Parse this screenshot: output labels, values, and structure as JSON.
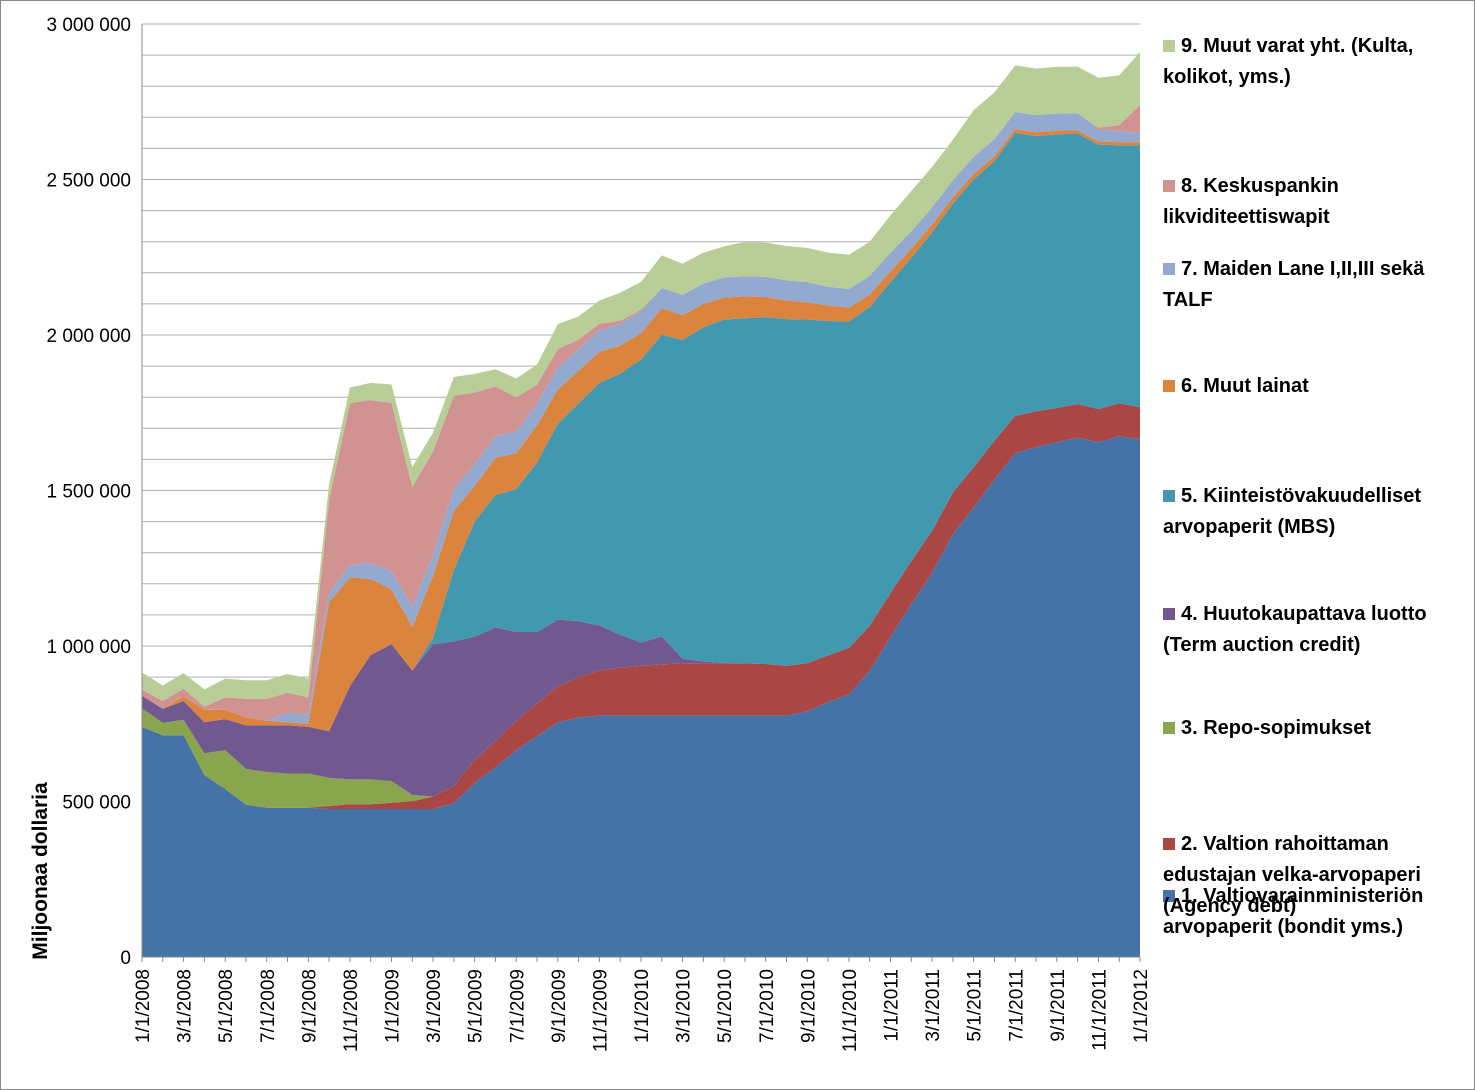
{
  "chart_data": {
    "type": "stacked_area",
    "y_axis_label": "Miljoonaa dollaria",
    "categories": [
      "1/1/2008",
      null,
      "3/1/2008",
      null,
      "5/1/2008",
      null,
      "7/1/2008",
      null,
      "9/1/2008",
      null,
      "11/1/2008",
      null,
      "1/1/2009",
      null,
      "3/1/2009",
      null,
      "5/1/2009",
      null,
      "7/1/2009",
      null,
      "9/1/2009",
      null,
      "11/1/2009",
      null,
      "1/1/2010",
      null,
      "3/1/2010",
      null,
      "5/1/2010",
      null,
      "7/1/2010",
      null,
      "9/1/2010",
      null,
      "11/1/2010",
      null,
      "1/1/2011",
      null,
      "3/1/2011",
      null,
      "5/1/2011",
      null,
      "7/1/2011",
      null,
      "9/1/2011",
      null,
      "11/1/2011",
      null,
      "1/1/2012"
    ],
    "ylim": [
      0,
      3000000
    ],
    "yticks": [
      {
        "value": 0,
        "label": "0"
      },
      {
        "value": 500000,
        "label": "500 000"
      },
      {
        "value": 1000000,
        "label": "1 000 000"
      },
      {
        "value": 1500000,
        "label": "1 500 000"
      },
      {
        "value": 2000000,
        "label": "2 000 000"
      },
      {
        "value": 2500000,
        "label": "2 500 000"
      },
      {
        "value": 3000000,
        "label": "3 000 000"
      }
    ],
    "minor_grid": [
      100000,
      200000,
      300000,
      400000,
      600000,
      700000,
      800000,
      900000,
      1100000,
      1200000,
      1300000,
      1400000,
      1600000,
      1700000,
      1800000,
      1900000,
      2100000,
      2200000,
      2300000,
      2400000,
      2600000,
      2700000,
      2800000,
      2900000
    ],
    "grid": true,
    "legend": "right",
    "series": [
      {
        "name": "1. Valtiovarainministeriön arvopaperit (bondit yms.)",
        "color": "#4572a7",
        "values": [
          740000,
          713000,
          713000,
          585000,
          540000,
          490000,
          480000,
          480000,
          480000,
          476000,
          476000,
          476000,
          476000,
          476000,
          476000,
          495000,
          560000,
          610000,
          665000,
          710000,
          755000,
          770000,
          776000,
          776000,
          776000,
          776000,
          776000,
          776000,
          776000,
          776000,
          776000,
          776000,
          790000,
          820000,
          845000,
          920000,
          1030000,
          1135000,
          1235000,
          1360000,
          1445000,
          1535000,
          1620000,
          1640000,
          1655000,
          1670000,
          1655000,
          1675000,
          1665000
        ]
      },
      {
        "name": "2. Valtion rahoittaman edustajan velka-arvopaperi (Agency debt)",
        "color": "#aa4643",
        "values": [
          0,
          0,
          0,
          0,
          0,
          0,
          0,
          0,
          0,
          10000,
          15000,
          15000,
          20000,
          25000,
          40000,
          55000,
          75000,
          85000,
          95000,
          105000,
          115000,
          130000,
          145000,
          155000,
          160000,
          165000,
          168000,
          169000,
          169000,
          168000,
          166000,
          160000,
          155000,
          150000,
          148000,
          145000,
          140000,
          138000,
          135000,
          133000,
          130000,
          125000,
          120000,
          115000,
          110000,
          108000,
          107000,
          105000,
          103000
        ]
      },
      {
        "name": "3. Repo-sopimukset",
        "color": "#89a54e",
        "values": [
          60000,
          40000,
          50000,
          70000,
          125000,
          115000,
          115000,
          110000,
          110000,
          90000,
          80000,
          80000,
          70000,
          20000,
          0,
          0,
          0,
          0,
          0,
          0,
          0,
          0,
          0,
          0,
          0,
          0,
          0,
          0,
          0,
          0,
          0,
          0,
          0,
          0,
          0,
          0,
          0,
          0,
          0,
          0,
          0,
          0,
          0,
          0,
          0,
          0,
          0,
          0,
          0
        ]
      },
      {
        "name": "4. Huutokaupattava luotto (Term auction credit)",
        "color": "#71588f",
        "values": [
          40000,
          45000,
          60000,
          100000,
          100000,
          140000,
          150000,
          155000,
          150000,
          150000,
          300000,
          400000,
          440000,
          400000,
          490000,
          465000,
          395000,
          365000,
          285000,
          230000,
          215000,
          180000,
          145000,
          105000,
          75000,
          90000,
          15000,
          5000,
          0,
          0,
          0,
          0,
          0,
          0,
          0,
          0,
          0,
          0,
          0,
          0,
          0,
          0,
          0,
          0,
          0,
          0,
          0,
          0,
          0
        ]
      },
      {
        "name": "5. Kiinteistövakuudelliset arvopaperit (MBS)",
        "color": "#4198af",
        "values": [
          0,
          0,
          0,
          0,
          0,
          0,
          0,
          0,
          0,
          0,
          0,
          0,
          0,
          0,
          20000,
          230000,
          370000,
          425000,
          460000,
          545000,
          630000,
          700000,
          780000,
          840000,
          910000,
          970000,
          1025000,
          1075000,
          1105000,
          1110000,
          1115000,
          1115000,
          1105000,
          1075000,
          1050000,
          1025000,
          1000000,
          975000,
          960000,
          930000,
          925000,
          900000,
          910000,
          885000,
          880000,
          870000,
          850000,
          830000,
          842000
        ]
      },
      {
        "name": "6. Muut lainat",
        "color": "#db843d",
        "values": [
          0,
          0,
          15000,
          40000,
          30000,
          25000,
          15000,
          10000,
          10000,
          415000,
          350000,
          245000,
          175000,
          140000,
          200000,
          190000,
          115000,
          120000,
          115000,
          120000,
          110000,
          105000,
          100000,
          90000,
          85000,
          85000,
          80000,
          75000,
          70000,
          70000,
          65000,
          60000,
          55000,
          50000,
          45000,
          40000,
          35000,
          30000,
          25000,
          20000,
          18000,
          15000,
          12000,
          12000,
          12000,
          10000,
          10000,
          10000,
          10000
        ]
      },
      {
        "name": "7. Maiden Lane I,II,III sekä TALF",
        "color": "#93a9cf",
        "values": [
          0,
          0,
          0,
          0,
          0,
          0,
          0,
          30000,
          30000,
          30000,
          40000,
          50000,
          60000,
          65000,
          70000,
          70000,
          70000,
          70000,
          70000,
          70000,
          70000,
          70000,
          70000,
          70000,
          70000,
          65000,
          65000,
          65000,
          65000,
          65000,
          65000,
          65000,
          65000,
          60000,
          60000,
          60000,
          60000,
          55000,
          55000,
          55000,
          55000,
          55000,
          55000,
          55000,
          55000,
          55000,
          40000,
          35000,
          30000
        ]
      },
      {
        "name": "8. Keskuspankin likviditeettiswapit",
        "color": "#d19392",
        "values": [
          20000,
          25000,
          25000,
          10000,
          40000,
          60000,
          70000,
          65000,
          55000,
          300000,
          520000,
          525000,
          540000,
          385000,
          330000,
          300000,
          230000,
          160000,
          110000,
          60000,
          60000,
          30000,
          20000,
          10000,
          5000,
          0,
          0,
          0,
          0,
          0,
          0,
          0,
          0,
          0,
          0,
          0,
          0,
          0,
          0,
          0,
          0,
          0,
          0,
          0,
          0,
          0,
          5000,
          20000,
          90000
        ]
      },
      {
        "name": "9. Muut varat yht. (Kulta, kolikot, yms.)",
        "color": "#b9cd96",
        "values": [
          55000,
          50000,
          50000,
          55000,
          60000,
          60000,
          60000,
          60000,
          60000,
          50000,
          50000,
          55000,
          60000,
          65000,
          60000,
          60000,
          60000,
          55000,
          60000,
          65000,
          80000,
          75000,
          75000,
          90000,
          90000,
          105000,
          100000,
          100000,
          100000,
          110000,
          110000,
          110000,
          110000,
          110000,
          110000,
          110000,
          120000,
          130000,
          130000,
          130000,
          150000,
          150000,
          150000,
          150000,
          150000,
          150000,
          160000,
          160000,
          170000
        ]
      }
    ]
  }
}
